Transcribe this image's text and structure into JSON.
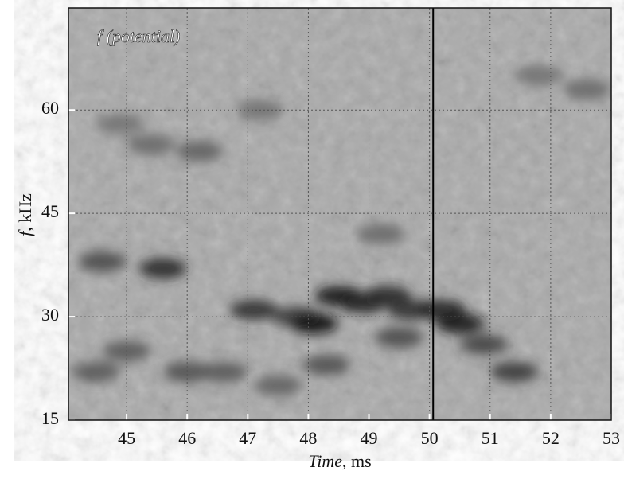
{
  "chart_data": {
    "type": "spectrogram",
    "annotation": "f (potential)",
    "x_label": "Time",
    "x_unit": ", ms",
    "y_label": "f",
    "y_unit": ", kHz",
    "xlim": [
      44.04,
      53
    ],
    "ylim": [
      15,
      74.8
    ],
    "xticks": [
      45,
      46,
      47,
      48,
      49,
      50,
      51,
      52,
      53
    ],
    "yticks": [
      15,
      30,
      45,
      60
    ],
    "grid": true,
    "marker_time": 50.06,
    "x": [
      45.6,
      44.6,
      47.1,
      47.8,
      48.1,
      48.5,
      48.9,
      49.3,
      49.7,
      50.2,
      50.5,
      50.9,
      51.4,
      46.0,
      45.0,
      44.5,
      46.6,
      47.5,
      48.3,
      49.5,
      45.4,
      44.9,
      46.2,
      52.6,
      51.8,
      49.2,
      47.2
    ],
    "y": [
      37,
      38,
      31,
      30,
      29,
      33,
      32,
      33,
      31,
      31,
      29,
      26,
      22,
      22,
      25,
      22,
      22,
      20,
      23,
      27,
      55,
      58,
      54,
      63,
      65,
      42,
      60
    ],
    "values": [
      0.8,
      0.6,
      0.75,
      0.7,
      0.95,
      0.9,
      0.85,
      0.8,
      0.75,
      0.85,
      0.9,
      0.65,
      0.7,
      0.55,
      0.5,
      0.5,
      0.5,
      0.45,
      0.55,
      0.6,
      0.4,
      0.35,
      0.45,
      0.4,
      0.35,
      0.4,
      0.35
    ]
  }
}
